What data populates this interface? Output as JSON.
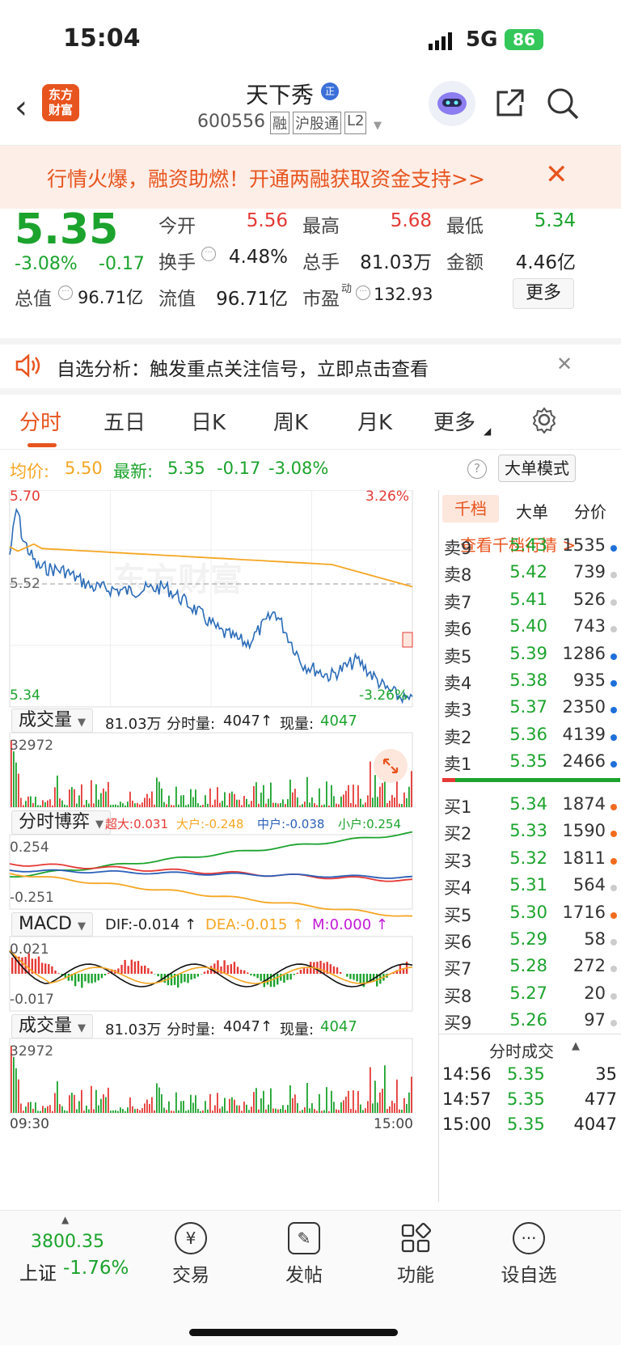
{
  "status": {
    "time": "15:04",
    "signal": "5G",
    "battery": "86"
  },
  "nav": {
    "logo": "东方\n财富",
    "title": "天下秀",
    "title_badge": "正",
    "code": "600556",
    "tags": [
      "融",
      "沪股通",
      "L2"
    ]
  },
  "banner": {
    "text": "行情火爆，融资助燃！开通两融获取资金支持>>"
  },
  "quote": {
    "price": "5.35",
    "pct": "-3.08%",
    "chg": "-0.17",
    "open_label": "今开",
    "open": "5.56",
    "high_label": "最高",
    "high": "5.68",
    "low_label": "最低",
    "low": "5.34",
    "turnover_label": "换手",
    "turnover": "4.48%",
    "vol_label": "总手",
    "vol": "81.03万",
    "amount_label": "金额",
    "amount": "4.46亿",
    "mcap_label": "总值",
    "mcap": "96.71亿",
    "float_label": "流值",
    "float": "96.71亿",
    "pe_label": "市盈",
    "pe_sup": "动",
    "pe": "132.93",
    "more": "更多"
  },
  "alert": {
    "text": "自选分析：触发重点关注信号，立即点击查看"
  },
  "tabs": [
    "分时",
    "五日",
    "日K",
    "周K",
    "月K",
    "更多"
  ],
  "avg": {
    "avg_label": "均价:",
    "avg": "5.50",
    "last_label": "最新:",
    "last": "5.35",
    "chg": "-0.17",
    "pct": "-3.08%",
    "mode": "大单模式"
  },
  "chart": {
    "ymax": "5.70",
    "ymid": "5.52",
    "ymin": "5.34",
    "pmax": "3.26%",
    "pmin": "-3.26%",
    "watermark": "东方财富"
  },
  "vol1": {
    "sel": "成交量",
    "summary": "81.03万",
    "fsl_label": "分时量:",
    "fsl": "4047",
    "cur_label": "现量:",
    "cur": "4047",
    "max": "32972"
  },
  "game": {
    "sel": "分时博弈",
    "cd_label": "超大:",
    "cd": "0.031",
    "dh_label": "大户:",
    "dh": "-0.248",
    "zh_label": "中户:",
    "zh": "-0.038",
    "xh_label": "小户:",
    "xh": "0.254",
    "ymax": "0.254",
    "ymin": "-0.251"
  },
  "macd": {
    "sel": "MACD",
    "dif_label": "DIF:",
    "dif": "-0.014",
    "dea_label": "DEA:",
    "dea": "-0.015",
    "m_label": "M:",
    "m": "0.000",
    "ymax": "0.021",
    "ymin": "-0.017"
  },
  "vol2": {
    "sel": "成交量",
    "summary": "81.03万",
    "fsl_label": "分时量:",
    "fsl": "4047",
    "cur_label": "现量:",
    "cur": "4047",
    "max": "32972",
    "tstart": "09:30",
    "tend": "15:00"
  },
  "depth": {
    "tabs": [
      "千档",
      "大单",
      "分价"
    ],
    "link": "查看千档行情 >",
    "asks": [
      {
        "l": "卖9",
        "p": "5.43",
        "v": "1535",
        "c": "#1e6fd9"
      },
      {
        "l": "卖8",
        "p": "5.42",
        "v": "739",
        "c": "#ccc"
      },
      {
        "l": "卖7",
        "p": "5.41",
        "v": "526",
        "c": "#ccc"
      },
      {
        "l": "卖6",
        "p": "5.40",
        "v": "743",
        "c": "#ccc"
      },
      {
        "l": "卖5",
        "p": "5.39",
        "v": "1286",
        "c": "#1e6fd9"
      },
      {
        "l": "卖4",
        "p": "5.38",
        "v": "935",
        "c": "#1e6fd9"
      },
      {
        "l": "卖3",
        "p": "5.37",
        "v": "2350",
        "c": "#1e6fd9"
      },
      {
        "l": "卖2",
        "p": "5.36",
        "v": "4139",
        "c": "#1e6fd9"
      },
      {
        "l": "卖1",
        "p": "5.35",
        "v": "2466",
        "c": "#1e6fd9"
      }
    ],
    "bids": [
      {
        "l": "买1",
        "p": "5.34",
        "v": "1874",
        "c": "#f26b1d"
      },
      {
        "l": "买2",
        "p": "5.33",
        "v": "1590",
        "c": "#f26b1d"
      },
      {
        "l": "买3",
        "p": "5.32",
        "v": "1811",
        "c": "#f26b1d"
      },
      {
        "l": "买4",
        "p": "5.31",
        "v": "564",
        "c": "#ccc"
      },
      {
        "l": "买5",
        "p": "5.30",
        "v": "1716",
        "c": "#f26b1d"
      },
      {
        "l": "买6",
        "p": "5.29",
        "v": "58",
        "c": "#ccc"
      },
      {
        "l": "买7",
        "p": "5.28",
        "v": "272",
        "c": "#ccc"
      },
      {
        "l": "买8",
        "p": "5.27",
        "v": "20",
        "c": "#ccc"
      },
      {
        "l": "买9",
        "p": "5.26",
        "v": "97",
        "c": "#ccc"
      }
    ],
    "trades_title": "分时成交",
    "trades": [
      {
        "t": "14:56",
        "p": "5.35",
        "v": "35"
      },
      {
        "t": "14:57",
        "p": "5.35",
        "v": "477"
      },
      {
        "t": "15:00",
        "p": "5.35",
        "v": "4047"
      }
    ]
  },
  "bottom": {
    "index_val": "3800.35",
    "index_name": "上证",
    "index_pct": "-1.76%",
    "items": [
      "交易",
      "发帖",
      "功能",
      "设自选"
    ]
  },
  "colors": {
    "up": "#e53935",
    "down": "#1ca32d",
    "accent": "#e8541e",
    "avg": "#f5a623",
    "price": "#2b6cb8"
  }
}
